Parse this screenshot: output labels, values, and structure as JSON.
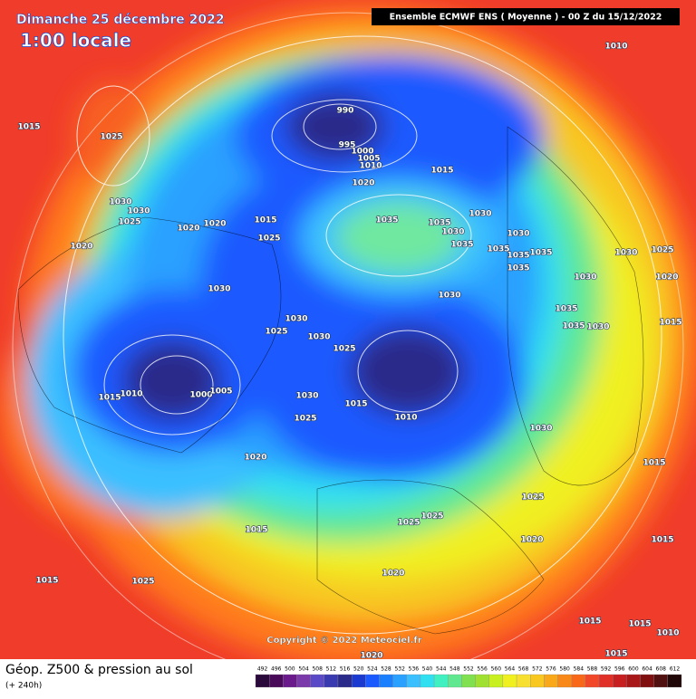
{
  "header": {
    "date": "Dimanche 25 décembre 2022",
    "time": "1:00 locale",
    "model": "Ensemble ECMWF ENS  ( Moyenne )  -  00 Z du 15/12/2022"
  },
  "copyright": "Copyright © 2022 Meteociel.fr",
  "footer": {
    "title": "Géop. Z500 & pression au sol",
    "lead": "(+ 240h)"
  },
  "isobar_labels": [
    1015,
    1025,
    990,
    995,
    1000,
    1005,
    1010,
    1020,
    1015,
    1010,
    1030,
    1030,
    1025,
    1020,
    1020,
    1015,
    1025,
    1020,
    1035,
    1035,
    1030,
    1030,
    1035,
    1030,
    1035,
    1035,
    1035,
    1035,
    1030,
    1025,
    1030,
    1020,
    1030,
    1030,
    1035,
    1030,
    1025,
    1030,
    1025,
    1035,
    1030,
    1015,
    1015,
    1010,
    1000,
    1005,
    1030,
    1015,
    1025,
    1010,
    1030,
    1020,
    1015,
    1025,
    1025,
    1025,
    1020,
    1015,
    1015,
    1025,
    1020,
    1015,
    1015,
    1015,
    1010,
    1020,
    1015
  ],
  "legend": {
    "values": [
      492,
      496,
      500,
      504,
      508,
      512,
      516,
      520,
      524,
      528,
      532,
      536,
      540,
      544,
      548,
      552,
      556,
      560,
      564,
      568,
      572,
      576,
      580,
      584,
      588,
      592,
      596,
      600,
      604,
      608,
      612
    ],
    "colors": [
      "#2a0a3a",
      "#4a0a5a",
      "#6a1a8a",
      "#7a3aaa",
      "#5a4ac8",
      "#3a3ab0",
      "#2a2a8a",
      "#1a3ad0",
      "#1a5aff",
      "#1a80ff",
      "#2aa0ff",
      "#3ac0ff",
      "#30e0f0",
      "#40f0c0",
      "#60e890",
      "#80e050",
      "#a0e030",
      "#c8f020",
      "#f0f020",
      "#f8e030",
      "#f8c820",
      "#f8a818",
      "#f88818",
      "#f86818",
      "#f04828",
      "#e03028",
      "#c82020",
      "#a81818",
      "#801010",
      "#501010",
      "#200808"
    ]
  }
}
